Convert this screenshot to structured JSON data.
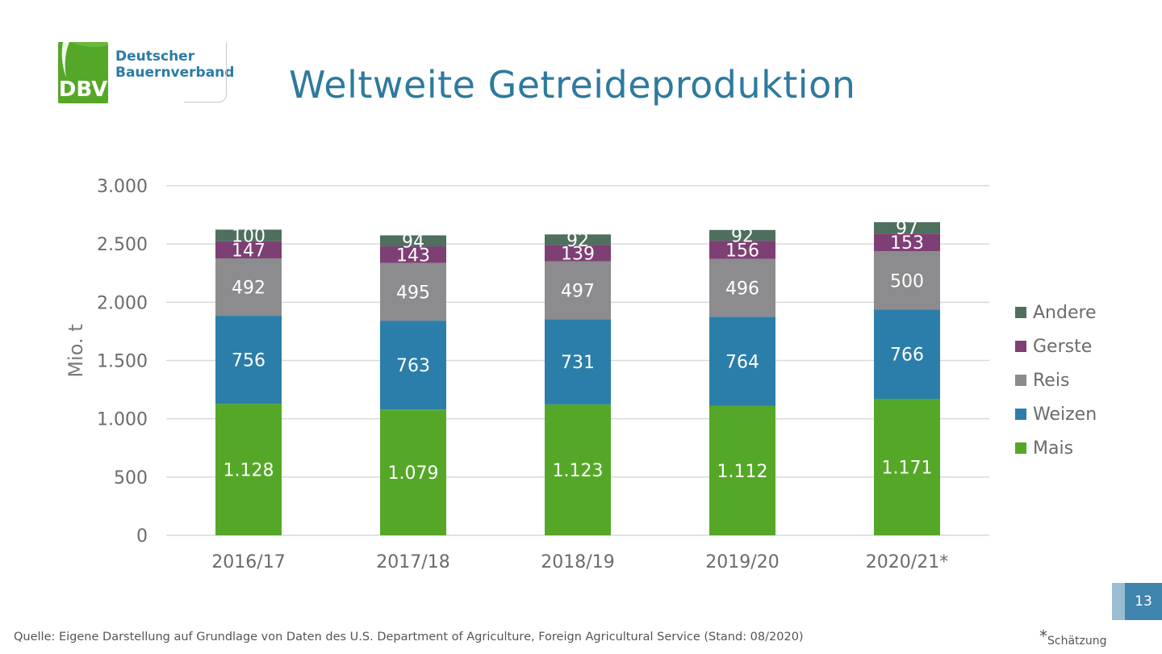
{
  "logo": {
    "abbr": "DBV",
    "name": "Deutscher\nBauernverband"
  },
  "title": "Weltweite Getreideproduktion",
  "source": "Quelle: Eigene Darstellung auf Grundlage von Daten des U.S. Department of Agriculture, Foreign Agricultural Service (Stand: 08/2020)",
  "footnote": {
    "star": "*",
    "text": "Schätzung"
  },
  "page_number": "13",
  "colors": {
    "mais": "#55a827",
    "weizen": "#2b7ea9",
    "reis": "#8c8c8f",
    "gerste": "#7e3f74",
    "andere": "#4f6f5f",
    "title": "#2e7a9e"
  },
  "chart_data": {
    "type": "bar",
    "stacked": true,
    "categories": [
      "2016/17",
      "2017/18",
      "2018/19",
      "2019/20",
      "2020/21*"
    ],
    "series": [
      {
        "name": "Mais",
        "color": "#55a827",
        "values": [
          1128,
          1079,
          1123,
          1112,
          1171
        ],
        "labels": [
          "1.128",
          "1.079",
          "1.123",
          "1.112",
          "1.171"
        ]
      },
      {
        "name": "Weizen",
        "color": "#2b7ea9",
        "values": [
          756,
          763,
          731,
          764,
          766
        ],
        "labels": [
          "756",
          "763",
          "731",
          "764",
          "766"
        ]
      },
      {
        "name": "Reis",
        "color": "#8c8c8f",
        "values": [
          492,
          495,
          497,
          496,
          500
        ],
        "labels": [
          "492",
          "495",
          "497",
          "496",
          "500"
        ]
      },
      {
        "name": "Gerste",
        "color": "#7e3f74",
        "values": [
          147,
          143,
          139,
          156,
          153
        ],
        "labels": [
          "147",
          "143",
          "139",
          "156",
          "153"
        ]
      },
      {
        "name": "Andere",
        "color": "#4f6f5f",
        "values": [
          100,
          94,
          92,
          92,
          97
        ],
        "labels": [
          "100",
          "94",
          "92",
          "92",
          "97"
        ]
      }
    ],
    "ylabel": "Mio. t",
    "ylim": [
      0,
      3000
    ],
    "yticks": [
      0,
      500,
      1000,
      1500,
      2000,
      2500,
      3000
    ],
    "ytick_labels": [
      "0",
      "500",
      "1.000",
      "1.500",
      "2.000",
      "2.500",
      "3.000"
    ],
    "legend_order": [
      "Andere",
      "Gerste",
      "Reis",
      "Weizen",
      "Mais"
    ],
    "legend_position": "right",
    "grid": true
  }
}
